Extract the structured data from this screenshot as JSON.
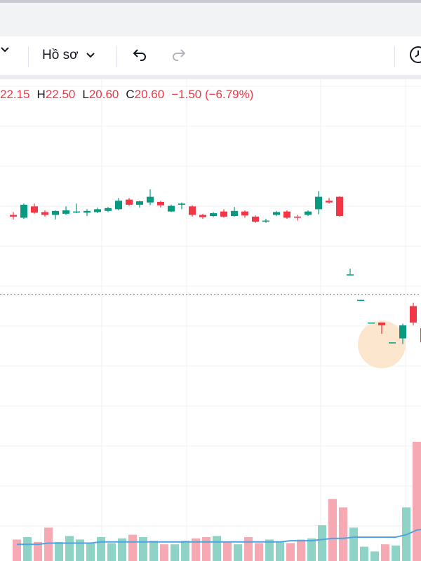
{
  "toolbar": {
    "profile_label": "Hồ sơ",
    "chevron_glyph": "⌄"
  },
  "ohlc": {
    "open_value": "22.15",
    "high_label": "H",
    "high_value": "22.50",
    "low_label": "L",
    "low_value": "20.60",
    "close_label": "C",
    "close_value": "20.60",
    "change": "−1.50 (−6.79%)"
  },
  "colors": {
    "up": "#089981",
    "down": "#f23645",
    "up_volume": "#8fd3c7",
    "down_volume": "#f7a9b3",
    "volume_ma": "#4fa3e0",
    "grid": "#f0f1f3",
    "price_line": "#f23645"
  },
  "chart_data": {
    "type": "candlestick",
    "ylim": [
      18.7,
      23.9
    ],
    "last_price": 20.6,
    "candles": [
      {
        "o": 22.0,
        "h": 22.05,
        "l": 21.92,
        "c": 21.97
      },
      {
        "o": 21.95,
        "h": 22.2,
        "l": 21.93,
        "c": 22.18
      },
      {
        "o": 22.15,
        "h": 22.2,
        "l": 22.02,
        "c": 22.04
      },
      {
        "o": 22.05,
        "h": 22.08,
        "l": 21.97,
        "c": 22.0
      },
      {
        "o": 22.0,
        "h": 22.08,
        "l": 21.92,
        "c": 22.07
      },
      {
        "o": 22.02,
        "h": 22.15,
        "l": 22.0,
        "c": 22.08
      },
      {
        "o": 22.05,
        "h": 22.2,
        "l": 22.03,
        "c": 22.06
      },
      {
        "o": 22.04,
        "h": 22.1,
        "l": 21.98,
        "c": 22.07
      },
      {
        "o": 22.05,
        "h": 22.13,
        "l": 22.03,
        "c": 22.1
      },
      {
        "o": 22.07,
        "h": 22.14,
        "l": 22.05,
        "c": 22.12
      },
      {
        "o": 22.1,
        "h": 22.3,
        "l": 22.08,
        "c": 22.25
      },
      {
        "o": 22.27,
        "h": 22.3,
        "l": 22.16,
        "c": 22.18
      },
      {
        "o": 22.18,
        "h": 22.25,
        "l": 22.13,
        "c": 22.24
      },
      {
        "o": 22.22,
        "h": 22.45,
        "l": 22.17,
        "c": 22.32
      },
      {
        "o": 22.23,
        "h": 22.25,
        "l": 22.13,
        "c": 22.17
      },
      {
        "o": 22.06,
        "h": 22.18,
        "l": 22.05,
        "c": 22.16
      },
      {
        "o": 22.18,
        "h": 22.22,
        "l": 22.1,
        "c": 22.2
      },
      {
        "o": 22.15,
        "h": 22.17,
        "l": 21.97,
        "c": 22.0
      },
      {
        "o": 22.0,
        "h": 22.02,
        "l": 21.93,
        "c": 21.96
      },
      {
        "o": 21.98,
        "h": 22.05,
        "l": 21.96,
        "c": 22.03
      },
      {
        "o": 22.06,
        "h": 22.1,
        "l": 21.95,
        "c": 21.97
      },
      {
        "o": 21.98,
        "h": 22.14,
        "l": 21.97,
        "c": 22.07
      },
      {
        "o": 22.06,
        "h": 22.08,
        "l": 21.95,
        "c": 21.99
      },
      {
        "o": 21.97,
        "h": 21.99,
        "l": 21.86,
        "c": 21.88
      },
      {
        "o": 21.9,
        "h": 21.93,
        "l": 21.86,
        "c": 21.9
      },
      {
        "o": 22.0,
        "h": 22.07,
        "l": 21.98,
        "c": 22.05
      },
      {
        "o": 22.06,
        "h": 22.08,
        "l": 21.93,
        "c": 21.95
      },
      {
        "o": 21.97,
        "h": 22.0,
        "l": 21.9,
        "c": 21.95
      },
      {
        "o": 22.0,
        "h": 22.08,
        "l": 21.98,
        "c": 22.06
      },
      {
        "o": 22.1,
        "h": 22.42,
        "l": 22.01,
        "c": 22.32
      },
      {
        "o": 22.25,
        "h": 22.3,
        "l": 22.2,
        "c": 22.22
      },
      {
        "o": 22.32,
        "h": 22.33,
        "l": 21.97,
        "c": 21.98
      },
      {
        "o": 20.95,
        "h": 21.05,
        "l": 20.95,
        "c": 20.95
      },
      {
        "o": 20.5,
        "h": 20.5,
        "l": 20.5,
        "c": 20.5
      },
      {
        "o": 20.1,
        "h": 20.1,
        "l": 20.1,
        "c": 20.1
      },
      {
        "o": 20.1,
        "h": 20.1,
        "l": 19.9,
        "c": 20.05
      },
      {
        "o": 19.75,
        "h": 19.75,
        "l": 19.75,
        "c": 19.75
      },
      {
        "o": 19.82,
        "h": 20.08,
        "l": 19.72,
        "c": 20.05
      },
      {
        "o": 20.39,
        "h": 20.45,
        "l": 20.05,
        "c": 20.1
      },
      {
        "o": 20.0,
        "h": 20.02,
        "l": 19.73,
        "c": 19.75
      }
    ],
    "volume": [
      18,
      20,
      16,
      28,
      16,
      21,
      18,
      15,
      20,
      15,
      19,
      22,
      20,
      17,
      14,
      14,
      17,
      19,
      20,
      21,
      16,
      14,
      20,
      15,
      18,
      16,
      15,
      18,
      19,
      30,
      52,
      45,
      28,
      12,
      8,
      14,
      13,
      45,
      100,
      26
    ],
    "volume_ma": [
      14,
      14,
      14,
      15,
      15,
      15,
      15,
      15,
      16,
      16,
      16,
      16,
      16,
      16,
      16,
      16,
      16,
      16,
      16,
      16,
      16,
      16,
      16,
      16,
      16,
      16,
      17,
      17,
      17,
      18,
      19,
      19,
      20,
      20,
      20,
      20,
      20,
      22,
      26,
      27
    ]
  }
}
